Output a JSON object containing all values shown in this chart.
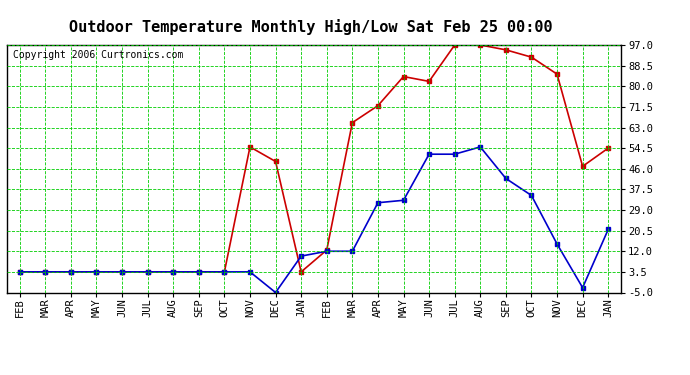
{
  "title": "Outdoor Temperature Monthly High/Low Sat Feb 25 00:00",
  "copyright": "Copyright 2006 Curtronics.com",
  "x_labels": [
    "FEB",
    "MAR",
    "APR",
    "MAY",
    "JUN",
    "JUL",
    "AUG",
    "SEP",
    "OCT",
    "NOV",
    "DEC",
    "JAN",
    "FEB",
    "MAR",
    "APR",
    "MAY",
    "JUN",
    "JUL",
    "AUG",
    "SEP",
    "OCT",
    "NOV",
    "DEC",
    "JAN"
  ],
  "high_values": [
    3.5,
    3.5,
    3.5,
    3.5,
    3.5,
    3.5,
    3.5,
    3.5,
    3.5,
    55.0,
    49.0,
    3.5,
    12.5,
    65.0,
    72.0,
    84.0,
    82.0,
    97.0,
    97.0,
    95.0,
    92.0,
    85.0,
    47.0,
    54.5
  ],
  "low_values": [
    3.5,
    3.5,
    3.5,
    3.5,
    3.5,
    3.5,
    3.5,
    3.5,
    3.5,
    3.5,
    -5.0,
    10.0,
    12.0,
    12.0,
    32.0,
    33.0,
    52.0,
    52.0,
    55.0,
    42.0,
    35.0,
    15.0,
    -3.0,
    21.0
  ],
  "high_color": "#cc0000",
  "low_color": "#0000cc",
  "bg_color": "#ffffff",
  "grid_color": "#00cc00",
  "yticks": [
    -5.0,
    3.5,
    12.0,
    20.5,
    29.0,
    37.5,
    46.0,
    54.5,
    63.0,
    71.5,
    80.0,
    88.5,
    97.0
  ],
  "ylim": [
    -5.0,
    97.0
  ],
  "title_fontsize": 11,
  "copyright_fontsize": 7,
  "tick_fontsize": 7.5
}
